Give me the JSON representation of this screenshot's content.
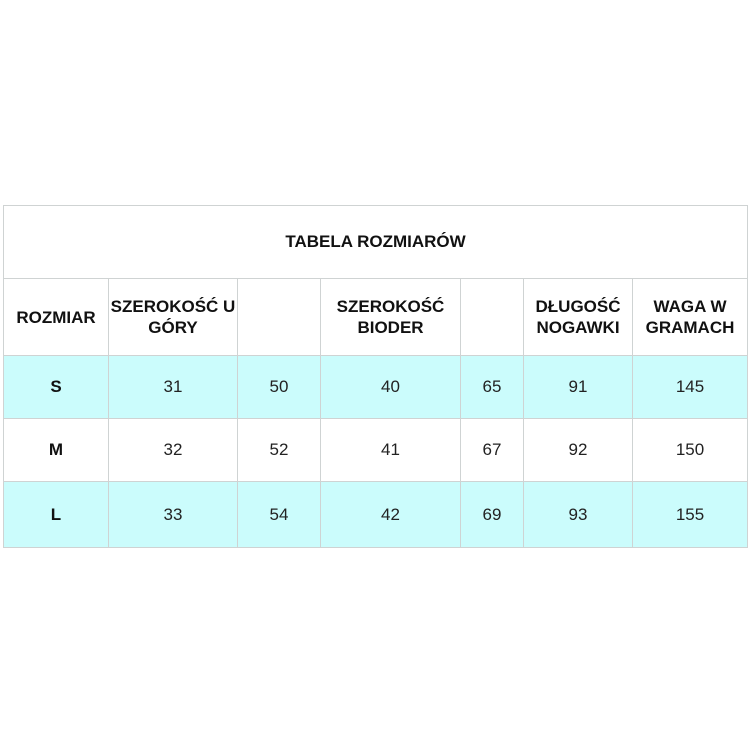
{
  "title": "TABELA ROZMIARÓW",
  "headers": [
    "ROZMIAR",
    "SZEROKOŚĆ U GÓRY",
    "",
    "SZEROKOŚĆ BIODER",
    "",
    "DŁUGOŚĆ NOGAWKI",
    "WAGA W GRAMACH"
  ],
  "rows": [
    [
      "S",
      "31",
      "50",
      "40",
      "65",
      "91",
      "145"
    ],
    [
      "M",
      "32",
      "52",
      "41",
      "67",
      "92",
      "150"
    ],
    [
      "L",
      "33",
      "54",
      "42",
      "69",
      "93",
      "155"
    ]
  ],
  "colors": {
    "alt_row": "#cbfcfc",
    "border": "#cfd3d3"
  }
}
